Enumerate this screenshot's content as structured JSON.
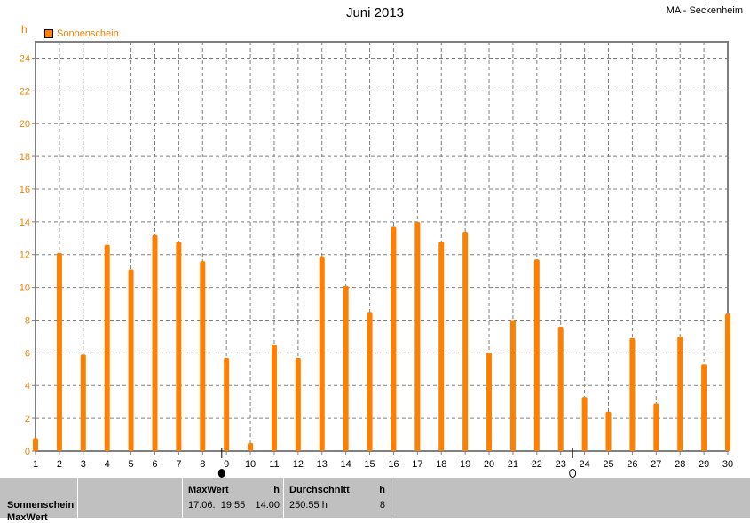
{
  "header": {
    "title": "Juni 2013",
    "station": "MA - Seckenheim"
  },
  "chart_data": {
    "type": "bar",
    "title": "Juni 2013",
    "ylabel": "h",
    "ylim": [
      0,
      25
    ],
    "yticks": [
      0,
      2,
      4,
      6,
      8,
      10,
      12,
      14,
      16,
      18,
      20,
      22,
      24
    ],
    "grid": true,
    "legend_placement": "top-left",
    "categories": [
      "1",
      "2",
      "3",
      "4",
      "5",
      "6",
      "7",
      "8",
      "9",
      "10",
      "11",
      "12",
      "13",
      "14",
      "15",
      "16",
      "17",
      "18",
      "19",
      "20",
      "21",
      "22",
      "23",
      "24",
      "25",
      "26",
      "27",
      "28",
      "29",
      "30"
    ],
    "series": [
      {
        "name": "Sonnenschein",
        "color": "#ff8000",
        "values": [
          0.8,
          12.1,
          5.9,
          12.6,
          11.1,
          13.2,
          12.8,
          11.6,
          5.7,
          0.5,
          6.5,
          5.7,
          11.9,
          10.1,
          8.5,
          13.7,
          14.0,
          12.8,
          13.4,
          6.0,
          8.0,
          11.7,
          7.6,
          3.3,
          2.4,
          6.9,
          2.9,
          7.0,
          5.3,
          8.4
        ]
      }
    ],
    "moon_phases": [
      {
        "phase": "new-moon",
        "day": 8.8
      },
      {
        "phase": "full-moon",
        "day": 23.5
      }
    ]
  },
  "table": {
    "row_label": "Sonnenschein",
    "row_label_cut": "MaxWert",
    "max_header": "MaxWert",
    "max_unit": "h",
    "max_datetime": "17.06.  19:55",
    "max_value": "14.00",
    "avg_header": "Durchschnitt",
    "avg_unit": "h",
    "avg_total": "250:55 h",
    "avg_value": "8"
  }
}
